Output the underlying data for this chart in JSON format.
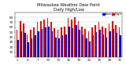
{
  "title": "Milwaukee Weather Dew Point",
  "subtitle": "Daily High/Low",
  "num_days": 31,
  "high_values": [
    55,
    72,
    68,
    45,
    55,
    60,
    70,
    72,
    76,
    78,
    70,
    58,
    55,
    60,
    62,
    78,
    76,
    80,
    72,
    62,
    56,
    52,
    60,
    65,
    70,
    62,
    58,
    68,
    72,
    65,
    60
  ],
  "low_values": [
    35,
    52,
    48,
    30,
    38,
    44,
    52,
    56,
    60,
    62,
    52,
    40,
    38,
    44,
    46,
    62,
    58,
    65,
    55,
    46,
    38,
    32,
    44,
    50,
    55,
    46,
    40,
    52,
    57,
    48,
    44
  ],
  "high_color": "#cc0000",
  "low_color": "#0000cc",
  "bg_color": "#ffffff",
  "ylim_min": 0,
  "ylim_max": 90,
  "bar_width": 0.38,
  "legend_high": "High",
  "legend_low": "Low",
  "yticks": [
    10,
    20,
    30,
    40,
    50,
    60,
    70,
    80
  ],
  "figsize": [
    1.6,
    0.87
  ],
  "dpi": 100
}
